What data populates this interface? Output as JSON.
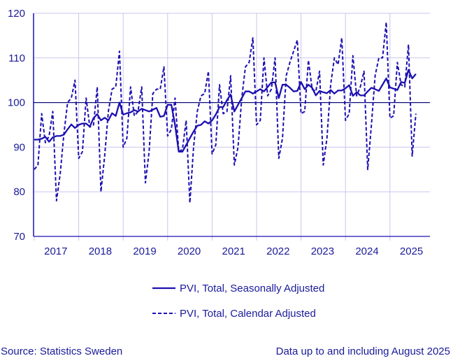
{
  "chart_data": {
    "type": "line",
    "title": "",
    "xlabel": "",
    "ylabel": "",
    "ylim": [
      70,
      120
    ],
    "yticks": [
      70,
      80,
      90,
      100,
      110,
      120
    ],
    "reference_line": 100,
    "x_start": "2017-01",
    "x_frequency": "monthly",
    "xtick_labels": [
      "2017",
      "2018",
      "2019",
      "2020",
      "2021",
      "2022",
      "2023",
      "2024",
      "2025"
    ],
    "grid": true,
    "legend_position": "bottom",
    "colors": {
      "line": "#1c10b0",
      "grid": "#cbc5ee",
      "text": "#1a1a9a"
    },
    "series": [
      {
        "name": "PVI, Total, Seasonally Adjusted",
        "style": "solid",
        "values": [
          91.7,
          91.7,
          91.9,
          92.3,
          91.2,
          92.2,
          92.5,
          92.5,
          92.8,
          94.0,
          95.1,
          94.3,
          95.0,
          95.3,
          95.3,
          94.6,
          96.5,
          97.4,
          96.0,
          96.6,
          96.0,
          97.6,
          97.0,
          100.0,
          97.3,
          97.6,
          97.8,
          98.3,
          98.0,
          98.6,
          98.3,
          98.0,
          98.4,
          98.8,
          96.8,
          97.0,
          99.5,
          99.5,
          95.0,
          89.0,
          89.0,
          90.5,
          92.0,
          93.5,
          94.8,
          95.0,
          95.8,
          95.3,
          96.0,
          97.3,
          99.0,
          99.0,
          100.5,
          101.8,
          98.0,
          99.5,
          101.0,
          102.5,
          102.5,
          102.0,
          102.5,
          103.0,
          102.5,
          103.5,
          104.5,
          104.5,
          101.0,
          104.0,
          104.0,
          103.3,
          102.5,
          102.6,
          104.6,
          103.0,
          104.0,
          103.3,
          101.6,
          102.6,
          102.3,
          102.1,
          102.8,
          102.0,
          102.7,
          102.7,
          103.2,
          103.9,
          101.5,
          102.3,
          101.6,
          101.6,
          102.5,
          103.3,
          103.0,
          102.6,
          104.0,
          105.4,
          103.4,
          103.1,
          102.8,
          104.6,
          104.4,
          107.3,
          105.4,
          106.4
        ]
      },
      {
        "name": "PVI, Total, Calendar Adjusted",
        "style": "dashed",
        "values": [
          85.0,
          86.0,
          97.5,
          91.0,
          92.5,
          98.0,
          78.0,
          84.0,
          93.0,
          100.0,
          101.0,
          105.0,
          87.5,
          89.0,
          101.0,
          94.5,
          95.0,
          103.5,
          80.0,
          88.0,
          98.0,
          103.0,
          103.5,
          111.5,
          90.0,
          92.0,
          103.5,
          97.0,
          98.0,
          103.5,
          82.0,
          89.0,
          102.0,
          103.0,
          103.0,
          108.0,
          92.5,
          94.0,
          101.0,
          89.0,
          89.5,
          96.0,
          77.5,
          90.0,
          98.0,
          101.5,
          102.0,
          107.0,
          88.5,
          90.5,
          104.0,
          97.5,
          98.0,
          106.0,
          86.0,
          90.0,
          101.0,
          108.0,
          109.0,
          114.5,
          95.0,
          96.0,
          110.0,
          101.5,
          103.0,
          110.0,
          87.5,
          92.0,
          106.0,
          109.0,
          111.5,
          114.0,
          97.5,
          98.0,
          109.5,
          103.0,
          102.5,
          107.0,
          86.0,
          92.0,
          104.0,
          110.0,
          108.5,
          114.5,
          96.0,
          97.5,
          110.5,
          101.5,
          103.5,
          107.0,
          85.0,
          95.0,
          106.0,
          110.0,
          110.0,
          118.0,
          96.5,
          97.0,
          109.0,
          104.0,
          103.5,
          113.0,
          88.0,
          97.5
        ]
      }
    ]
  },
  "footer": {
    "source": "Source: Statistics Sweden",
    "note": "Data up to and including August 2025"
  }
}
